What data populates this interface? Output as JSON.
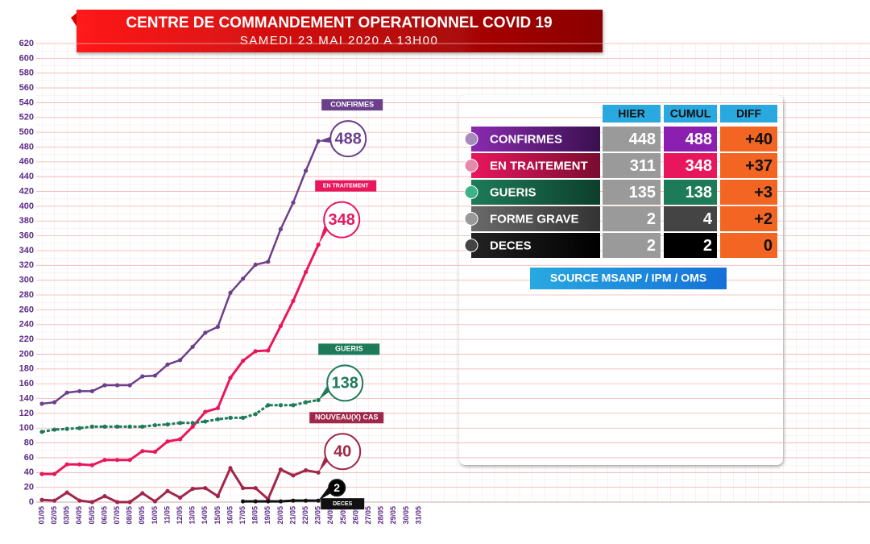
{
  "chart_data": {
    "type": "line",
    "title": "CENTRE DE COMMANDEMENT OPERATIONNEL COVID 19",
    "subtitle": "SAMEDI 23 MAI 2020 A 13H00",
    "categories": [
      "01/05",
      "02/05",
      "03/05",
      "04/05",
      "05/05",
      "06/05",
      "07/05",
      "08/05",
      "09/05",
      "10/05",
      "11/05",
      "12/05",
      "13/05",
      "14/05",
      "15/05",
      "16/05",
      "17/05",
      "18/05",
      "19/05",
      "20/05",
      "21/05",
      "22/05",
      "23/05",
      "24/05",
      "25/05",
      "26/05",
      "27/05",
      "28/05",
      "29/05",
      "30/05",
      "31/05"
    ],
    "ylim": [
      0,
      620
    ],
    "yticks": [
      0,
      20,
      40,
      60,
      80,
      100,
      120,
      140,
      160,
      180,
      200,
      220,
      240,
      260,
      280,
      300,
      320,
      340,
      360,
      380,
      400,
      420,
      440,
      460,
      480,
      500,
      520,
      540,
      560,
      580,
      600,
      620
    ],
    "grid": true,
    "series": [
      {
        "name": "CONFIRMES",
        "color": "#6b3f8c",
        "values": [
          133,
          135,
          148,
          150,
          150,
          158,
          158,
          158,
          170,
          171,
          186,
          192,
          210,
          229,
          237,
          283,
          302,
          321,
          325,
          369,
          405,
          448,
          488,
          null,
          null,
          null,
          null,
          null,
          null,
          null,
          null
        ]
      },
      {
        "name": "EN TRAITEMENT",
        "color": "#e8175d",
        "values": [
          38,
          38,
          51,
          51,
          50,
          57,
          57,
          57,
          69,
          68,
          82,
          85,
          102,
          122,
          127,
          168,
          191,
          204,
          205,
          238,
          272,
          311,
          348,
          null,
          null,
          null,
          null,
          null,
          null,
          null,
          null
        ]
      },
      {
        "name": "GUERIS",
        "color": "#1e7b5a",
        "values": [
          95,
          98,
          99,
          100,
          102,
          102,
          102,
          102,
          102,
          104,
          105,
          107,
          107,
          109,
          112,
          114,
          114,
          119,
          131,
          131,
          131,
          135,
          138,
          null,
          null,
          null,
          null,
          null,
          null,
          null,
          null
        ]
      },
      {
        "name": "NOUVEAU(X) CAS",
        "color": "#a0274a",
        "values": [
          3,
          2,
          13,
          2,
          0,
          8,
          0,
          0,
          12,
          1,
          15,
          6,
          18,
          19,
          8,
          46,
          19,
          19,
          4,
          44,
          36,
          43,
          40,
          null,
          null,
          null,
          null,
          null,
          null,
          null,
          null
        ]
      },
      {
        "name": "DECES",
        "color": "#111111",
        "values": [
          null,
          null,
          null,
          null,
          null,
          null,
          null,
          null,
          null,
          null,
          null,
          null,
          null,
          null,
          null,
          null,
          1,
          1,
          1,
          1,
          2,
          2,
          2,
          null,
          null,
          null,
          null,
          null,
          null,
          null,
          null
        ]
      }
    ]
  },
  "table": {
    "header": [
      "HIER",
      "CUMUL",
      "DIFF"
    ],
    "rows": [
      [
        "CONFIRMES",
        448,
        488,
        "+40"
      ],
      [
        "EN TRAITEMENT",
        311,
        348,
        "+37"
      ],
      [
        "GUERIS",
        135,
        138,
        "+3"
      ],
      [
        "FORME GRAVE",
        2,
        4,
        "+2"
      ],
      [
        "DECES",
        2,
        2,
        "0"
      ]
    ],
    "source": "SOURCE MSANP / IPM / OMS"
  }
}
